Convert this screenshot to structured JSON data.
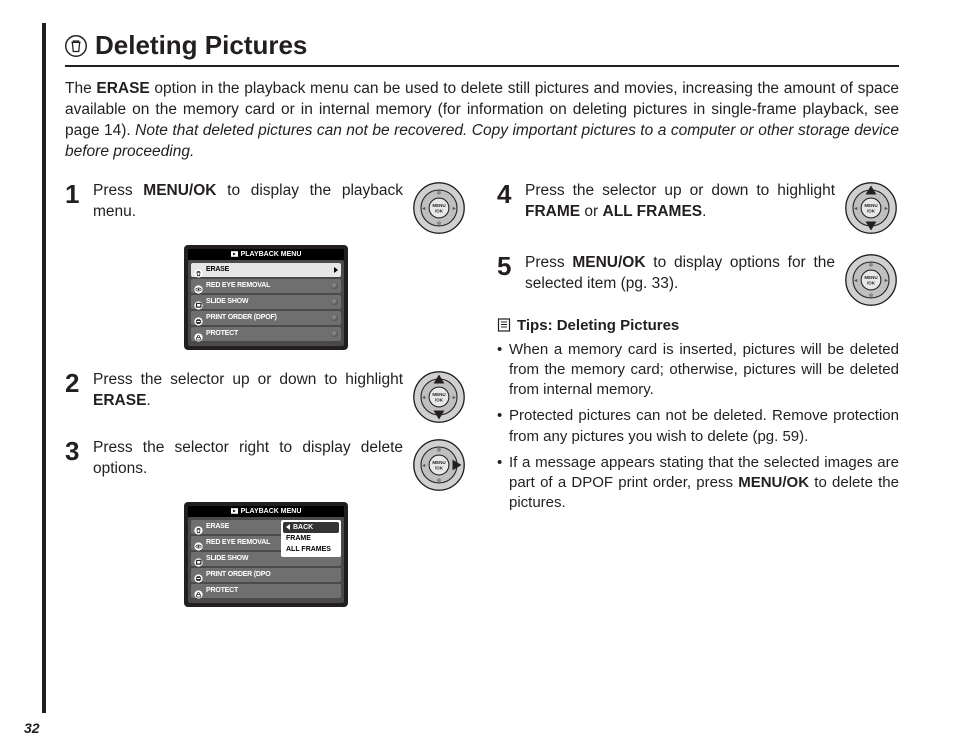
{
  "page_number": "32",
  "heading": {
    "icon": "trash-icon",
    "text": "Deleting Pictures"
  },
  "intro": {
    "before_bold": "The ",
    "bold1": "ERASE",
    "after_bold": " option in the playback menu can be used to delete still pictures and movies, increasing the amount of space available on the memory card or in internal memory (for information on deleting pictures in single-frame playback, see page 14).  ",
    "italic": "Note that deleted pictures can not be recovered.  Copy important pictures to a computer or other storage device before proceeding."
  },
  "steps": [
    {
      "num": "1",
      "pre": "Press ",
      "b1": "MENU/OK",
      "post": " to display the playback menu.",
      "dial": "ok"
    },
    {
      "num": "2",
      "pre": "Press the selector up or down to highlight ",
      "b1": "ERASE",
      "post": ".",
      "dial": "ud"
    },
    {
      "num": "3",
      "pre": "Press the selector right to display delete options.",
      "b1": "",
      "post": "",
      "dial": "r"
    },
    {
      "num": "4",
      "pre": "Press the selector up or down to highlight ",
      "b1": "FRAME",
      "mid": " or ",
      "b2": "ALL FRAMES",
      "post": ".",
      "dial": "ud"
    },
    {
      "num": "5",
      "pre": "Press ",
      "b1": "MENU/OK",
      "post": " to display options for the selected item (pg. 33).",
      "dial": "ok"
    }
  ],
  "screen1": {
    "title": "PLAYBACK MENU",
    "rows": [
      {
        "icon": "trash",
        "label": "ERASE",
        "selected": true,
        "tail": "arrow"
      },
      {
        "icon": "eye",
        "label": "RED EYE REMOVAL",
        "selected": false,
        "tail": "dot"
      },
      {
        "icon": "slide",
        "label": "SLIDE SHOW",
        "selected": false,
        "tail": "dot"
      },
      {
        "icon": "print",
        "label": "PRINT ORDER (DPOF)",
        "selected": false,
        "tail": "dot"
      },
      {
        "icon": "lock",
        "label": "PROTECT",
        "selected": false,
        "tail": "dot"
      }
    ]
  },
  "screen2": {
    "title": "PLAYBACK MENU",
    "rows": [
      {
        "icon": "trash",
        "label": "ERASE"
      },
      {
        "icon": "eye",
        "label": "RED EYE REMOVAL"
      },
      {
        "icon": "slide",
        "label": "SLIDE SHOW"
      },
      {
        "icon": "print",
        "label": "PRINT ORDER (DPO"
      },
      {
        "icon": "lock",
        "label": "PROTECT"
      }
    ],
    "submenu": [
      {
        "label": "BACK",
        "selected": true,
        "back": true
      },
      {
        "label": "FRAME",
        "selected": false
      },
      {
        "label": "ALL FRAMES",
        "selected": false
      }
    ]
  },
  "tips": {
    "heading": "Tips: Deleting Pictures",
    "items": [
      {
        "text": "When a memory card is inserted, pictures will be deleted from the memory card; otherwise, pictures will be deleted from internal memory."
      },
      {
        "text": "Protected pictures can not be deleted.  Remove protection from any pictures you wish to delete (pg. 59)."
      },
      {
        "pre": "If a message appears stating that the selected images are part of a DPOF print order, press ",
        "bold": "MENU/OK",
        "post": " to delete the pictures."
      }
    ]
  },
  "colors": {
    "text": "#231f20",
    "screen_bg": "#231f20",
    "screen_body": "#4a4a4a",
    "row_bg": "#6f6f6f",
    "row_sel": "#e6e6e6"
  }
}
